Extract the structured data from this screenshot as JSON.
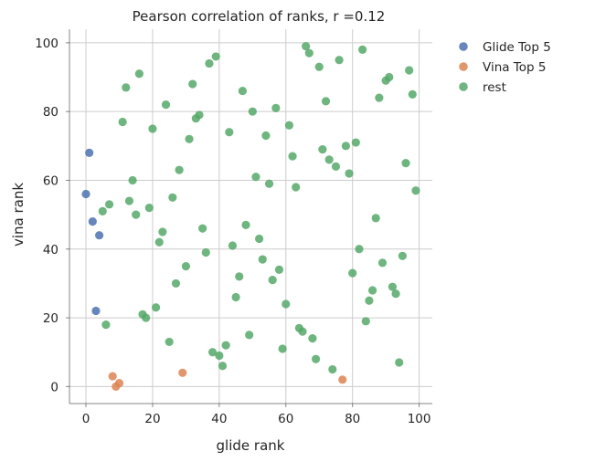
{
  "chart_data": {
    "type": "scatter",
    "title": "Pearson correlation of ranks, r =0.12",
    "xlabel": "glide rank",
    "ylabel": "vina rank",
    "xlim": [
      -4.95,
      103.95
    ],
    "ylim": [
      -4.95,
      103.95
    ],
    "xticks": [
      0,
      20,
      40,
      60,
      80,
      100
    ],
    "yticks": [
      0,
      20,
      40,
      60,
      80,
      100
    ],
    "grid": true,
    "legend_position": "outside-top-right",
    "series": [
      {
        "name": "Glide Top 5",
        "color": "#4c72b0",
        "points": [
          [
            0,
            56
          ],
          [
            1,
            68
          ],
          [
            2,
            48
          ],
          [
            3,
            22
          ],
          [
            4,
            44
          ]
        ]
      },
      {
        "name": "Vina Top 5",
        "color": "#dd8452",
        "points": [
          [
            8,
            3
          ],
          [
            9,
            0
          ],
          [
            10,
            1
          ],
          [
            29,
            4
          ],
          [
            77,
            2
          ]
        ]
      },
      {
        "name": "rest",
        "color": "#55a868",
        "points": [
          [
            5,
            51
          ],
          [
            6,
            18
          ],
          [
            7,
            53
          ],
          [
            11,
            77
          ],
          [
            12,
            87
          ],
          [
            13,
            54
          ],
          [
            14,
            60
          ],
          [
            15,
            50
          ],
          [
            16,
            91
          ],
          [
            17,
            21
          ],
          [
            18,
            20
          ],
          [
            19,
            52
          ],
          [
            20,
            75
          ],
          [
            21,
            23
          ],
          [
            22,
            42
          ],
          [
            23,
            45
          ],
          [
            24,
            82
          ],
          [
            25,
            13
          ],
          [
            26,
            55
          ],
          [
            27,
            30
          ],
          [
            28,
            63
          ],
          [
            30,
            35
          ],
          [
            31,
            72
          ],
          [
            32,
            88
          ],
          [
            33,
            78
          ],
          [
            34,
            79
          ],
          [
            35,
            46
          ],
          [
            36,
            39
          ],
          [
            37,
            94
          ],
          [
            38,
            10
          ],
          [
            39,
            96
          ],
          [
            40,
            9
          ],
          [
            41,
            6
          ],
          [
            42,
            12
          ],
          [
            43,
            74
          ],
          [
            44,
            41
          ],
          [
            45,
            26
          ],
          [
            46,
            32
          ],
          [
            47,
            86
          ],
          [
            48,
            47
          ],
          [
            49,
            15
          ],
          [
            50,
            80
          ],
          [
            51,
            61
          ],
          [
            52,
            43
          ],
          [
            53,
            37
          ],
          [
            54,
            73
          ],
          [
            55,
            59
          ],
          [
            56,
            31
          ],
          [
            57,
            81
          ],
          [
            58,
            34
          ],
          [
            59,
            11
          ],
          [
            60,
            24
          ],
          [
            61,
            76
          ],
          [
            62,
            67
          ],
          [
            63,
            58
          ],
          [
            64,
            17
          ],
          [
            65,
            16
          ],
          [
            66,
            99
          ],
          [
            67,
            97
          ],
          [
            68,
            14
          ],
          [
            69,
            8
          ],
          [
            70,
            93
          ],
          [
            71,
            69
          ],
          [
            72,
            83
          ],
          [
            73,
            66
          ],
          [
            74,
            5
          ],
          [
            75,
            64
          ],
          [
            76,
            95
          ],
          [
            78,
            70
          ],
          [
            79,
            62
          ],
          [
            80,
            33
          ],
          [
            81,
            71
          ],
          [
            82,
            40
          ],
          [
            83,
            98
          ],
          [
            84,
            19
          ],
          [
            85,
            25
          ],
          [
            86,
            28
          ],
          [
            87,
            49
          ],
          [
            88,
            84
          ],
          [
            89,
            36
          ],
          [
            90,
            89
          ],
          [
            91,
            90
          ],
          [
            92,
            29
          ],
          [
            93,
            27
          ],
          [
            94,
            7
          ],
          [
            95,
            38
          ],
          [
            96,
            65
          ],
          [
            97,
            92
          ],
          [
            98,
            85
          ],
          [
            99,
            57
          ]
        ]
      }
    ]
  }
}
